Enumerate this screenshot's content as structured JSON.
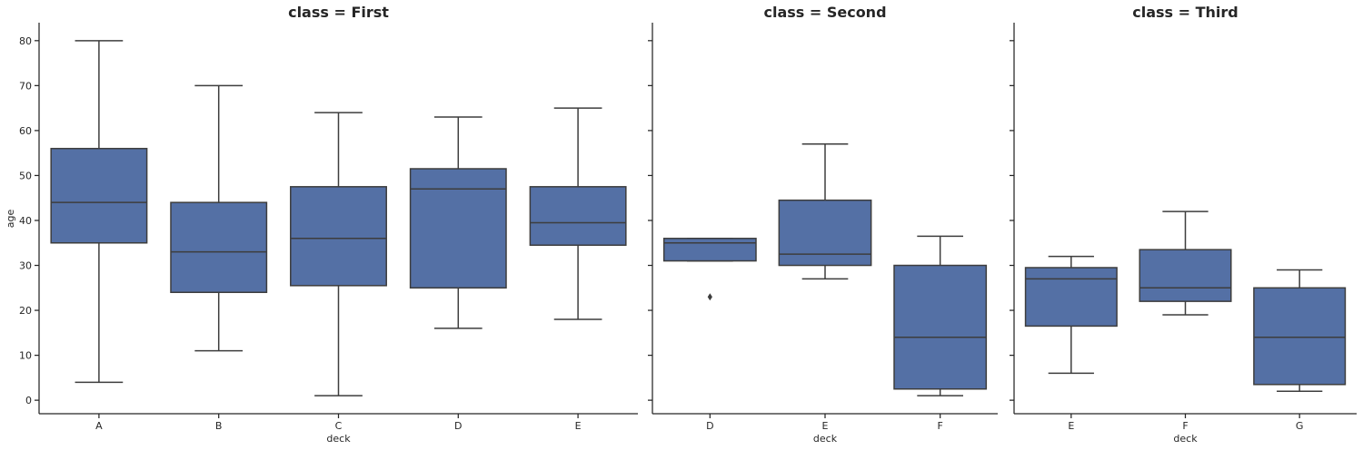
{
  "chart_data": {
    "type": "box",
    "ylabel": "age",
    "xlabel": "deck",
    "ylim": [
      -3,
      84
    ],
    "yticks": [
      0,
      10,
      20,
      30,
      40,
      50,
      60,
      70,
      80
    ],
    "box_color": "#5470a5",
    "line_color": "#3d3d3d",
    "panels": [
      {
        "title": "class = First",
        "categories": [
          "A",
          "B",
          "C",
          "D",
          "E"
        ],
        "boxes": [
          {
            "min": 4,
            "q1": 35,
            "median": 44,
            "q3": 56,
            "max": 80,
            "outliers": []
          },
          {
            "min": 11,
            "q1": 24,
            "median": 33,
            "q3": 44,
            "max": 70,
            "outliers": []
          },
          {
            "min": 1,
            "q1": 25.5,
            "median": 36,
            "q3": 47.5,
            "max": 64,
            "outliers": []
          },
          {
            "min": 16,
            "q1": 25,
            "median": 47,
            "q3": 51.5,
            "max": 63,
            "outliers": []
          },
          {
            "min": 18,
            "q1": 34.5,
            "median": 39.5,
            "q3": 47.5,
            "max": 65,
            "outliers": []
          }
        ]
      },
      {
        "title": "class = Second",
        "categories": [
          "D",
          "E",
          "F"
        ],
        "boxes": [
          {
            "min": 31,
            "q1": 31,
            "median": 35,
            "q3": 36,
            "max": 36,
            "outliers": [
              23
            ]
          },
          {
            "min": 27,
            "q1": 30,
            "median": 32.5,
            "q3": 44.5,
            "max": 57,
            "outliers": []
          },
          {
            "min": 1,
            "q1": 2.5,
            "median": 14,
            "q3": 30,
            "max": 36.5,
            "outliers": []
          }
        ]
      },
      {
        "title": "class = Third",
        "categories": [
          "E",
          "F",
          "G"
        ],
        "boxes": [
          {
            "min": 6,
            "q1": 16.5,
            "median": 27,
            "q3": 29.5,
            "max": 32,
            "outliers": []
          },
          {
            "min": 19,
            "q1": 22,
            "median": 25,
            "q3": 33.5,
            "max": 42,
            "outliers": []
          },
          {
            "min": 2,
            "q1": 3.5,
            "median": 14,
            "q3": 25,
            "max": 29,
            "outliers": []
          }
        ]
      }
    ]
  }
}
